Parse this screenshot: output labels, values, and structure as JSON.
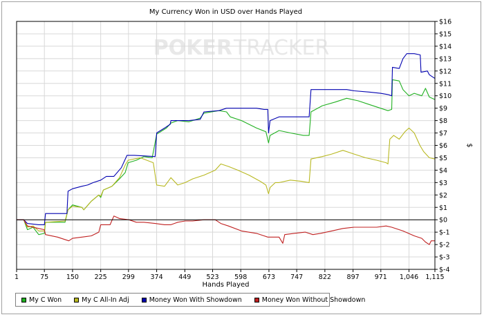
{
  "watermark": {
    "poker": "POKER",
    "tracker": "TRACKER"
  },
  "chart_data": {
    "type": "line",
    "title": "My Currency Won in USD over Hands Played",
    "xlabel": "Hands Played",
    "ylabel": "$",
    "xlim": [
      1,
      1115
    ],
    "ylim": [
      -4,
      16
    ],
    "x_ticks": [
      "1",
      "75",
      "150",
      "225",
      "299",
      "374",
      "449",
      "523",
      "598",
      "673",
      "747",
      "822",
      "897",
      "971",
      "1,046",
      "1,115"
    ],
    "y_ticks": [
      "$16",
      "$15",
      "$14",
      "$13",
      "$12",
      "$11",
      "$10",
      "$9",
      "$8",
      "$7",
      "$6",
      "$5",
      "$4",
      "$3",
      "$2",
      "$1",
      "$0",
      "$-1",
      "$-2",
      "$-3",
      "$-4"
    ],
    "grid": true,
    "legend_position": "bottom-left",
    "series": [
      {
        "name": "My C Won",
        "color": "#20b020",
        "points": [
          [
            1,
            0
          ],
          [
            20,
            0
          ],
          [
            30,
            -0.8
          ],
          [
            45,
            -0.6
          ],
          [
            60,
            -1.2
          ],
          [
            75,
            -1.1
          ],
          [
            78,
            -0.2
          ],
          [
            130,
            -0.2
          ],
          [
            138,
            0.8
          ],
          [
            150,
            1.2
          ],
          [
            175,
            1.0
          ],
          [
            180,
            0.8
          ],
          [
            200,
            1.5
          ],
          [
            220,
            2.0
          ],
          [
            225,
            1.8
          ],
          [
            232,
            2.4
          ],
          [
            255,
            2.7
          ],
          [
            275,
            3.3
          ],
          [
            290,
            3.8
          ],
          [
            298,
            4.6
          ],
          [
            320,
            4.8
          ],
          [
            340,
            5.1
          ],
          [
            362,
            5.0
          ],
          [
            374,
            6.9
          ],
          [
            400,
            7.4
          ],
          [
            412,
            7.8
          ],
          [
            430,
            8.0
          ],
          [
            460,
            7.9
          ],
          [
            490,
            8.2
          ],
          [
            500,
            8.6
          ],
          [
            540,
            8.8
          ],
          [
            560,
            8.7
          ],
          [
            570,
            8.3
          ],
          [
            600,
            8.0
          ],
          [
            640,
            7.4
          ],
          [
            665,
            7.1
          ],
          [
            672,
            6.2
          ],
          [
            676,
            6.8
          ],
          [
            700,
            7.2
          ],
          [
            730,
            7.0
          ],
          [
            765,
            6.8
          ],
          [
            780,
            6.8
          ],
          [
            785,
            8.7
          ],
          [
            815,
            9.2
          ],
          [
            850,
            9.5
          ],
          [
            880,
            9.8
          ],
          [
            910,
            9.6
          ],
          [
            940,
            9.3
          ],
          [
            970,
            9.0
          ],
          [
            990,
            8.8
          ],
          [
            1000,
            8.9
          ],
          [
            1002,
            11.3
          ],
          [
            1020,
            11.2
          ],
          [
            1030,
            10.5
          ],
          [
            1046,
            10.0
          ],
          [
            1060,
            10.2
          ],
          [
            1080,
            10.0
          ],
          [
            1090,
            10.6
          ],
          [
            1100,
            9.9
          ],
          [
            1115,
            9.7
          ]
        ]
      },
      {
        "name": "My C All-In Adj",
        "color": "#b8b820",
        "points": [
          [
            1,
            0
          ],
          [
            20,
            0
          ],
          [
            30,
            -0.6
          ],
          [
            45,
            -0.5
          ],
          [
            60,
            -0.9
          ],
          [
            75,
            -0.9
          ],
          [
            78,
            -0.2
          ],
          [
            130,
            -0.1
          ],
          [
            138,
            0.8
          ],
          [
            150,
            1.1
          ],
          [
            175,
            1.0
          ],
          [
            180,
            0.8
          ],
          [
            200,
            1.5
          ],
          [
            220,
            2.0
          ],
          [
            225,
            1.9
          ],
          [
            232,
            2.4
          ],
          [
            255,
            2.7
          ],
          [
            275,
            3.4
          ],
          [
            290,
            4.4
          ],
          [
            298,
            4.8
          ],
          [
            330,
            5.0
          ],
          [
            365,
            4.6
          ],
          [
            374,
            2.8
          ],
          [
            395,
            2.7
          ],
          [
            412,
            3.4
          ],
          [
            430,
            2.8
          ],
          [
            450,
            3.0
          ],
          [
            470,
            3.3
          ],
          [
            500,
            3.6
          ],
          [
            530,
            4.0
          ],
          [
            545,
            4.5
          ],
          [
            565,
            4.3
          ],
          [
            590,
            4.0
          ],
          [
            620,
            3.6
          ],
          [
            650,
            3.1
          ],
          [
            665,
            2.8
          ],
          [
            672,
            2.1
          ],
          [
            676,
            2.6
          ],
          [
            690,
            3.0
          ],
          [
            700,
            3.0
          ],
          [
            730,
            3.2
          ],
          [
            760,
            3.1
          ],
          [
            780,
            3.0
          ],
          [
            785,
            4.9
          ],
          [
            815,
            5.1
          ],
          [
            840,
            5.3
          ],
          [
            870,
            5.6
          ],
          [
            900,
            5.3
          ],
          [
            930,
            5.0
          ],
          [
            960,
            4.8
          ],
          [
            985,
            4.6
          ],
          [
            990,
            4.5
          ],
          [
            995,
            6.5
          ],
          [
            1005,
            6.8
          ],
          [
            1020,
            6.5
          ],
          [
            1035,
            7.1
          ],
          [
            1046,
            7.4
          ],
          [
            1060,
            7.0
          ],
          [
            1075,
            6.0
          ],
          [
            1085,
            5.5
          ],
          [
            1100,
            5.0
          ],
          [
            1115,
            4.9
          ]
        ]
      },
      {
        "name": "Money Won With Showdown",
        "color": "#0000b0",
        "points": [
          [
            1,
            0
          ],
          [
            20,
            0
          ],
          [
            30,
            -0.3
          ],
          [
            60,
            -0.4
          ],
          [
            75,
            -0.4
          ],
          [
            78,
            0.5
          ],
          [
            135,
            0.5
          ],
          [
            138,
            2.3
          ],
          [
            150,
            2.5
          ],
          [
            175,
            2.7
          ],
          [
            190,
            2.8
          ],
          [
            205,
            3.0
          ],
          [
            225,
            3.2
          ],
          [
            240,
            3.5
          ],
          [
            260,
            3.5
          ],
          [
            280,
            4.2
          ],
          [
            295,
            5.2
          ],
          [
            315,
            5.2
          ],
          [
            370,
            5.1
          ],
          [
            374,
            7.0
          ],
          [
            395,
            7.4
          ],
          [
            410,
            7.7
          ],
          [
            412,
            8.0
          ],
          [
            460,
            8.0
          ],
          [
            490,
            8.1
          ],
          [
            500,
            8.7
          ],
          [
            540,
            8.8
          ],
          [
            560,
            9.0
          ],
          [
            600,
            9.0
          ],
          [
            640,
            9.0
          ],
          [
            660,
            8.9
          ],
          [
            670,
            8.9
          ],
          [
            672,
            7.0
          ],
          [
            676,
            8.0
          ],
          [
            700,
            8.3
          ],
          [
            730,
            8.3
          ],
          [
            765,
            8.3
          ],
          [
            780,
            8.3
          ],
          [
            785,
            10.5
          ],
          [
            850,
            10.5
          ],
          [
            880,
            10.5
          ],
          [
            900,
            10.4
          ],
          [
            940,
            10.3
          ],
          [
            970,
            10.2
          ],
          [
            990,
            10.1
          ],
          [
            1000,
            10.0
          ],
          [
            1002,
            12.3
          ],
          [
            1020,
            12.2
          ],
          [
            1030,
            13.0
          ],
          [
            1040,
            13.4
          ],
          [
            1060,
            13.4
          ],
          [
            1076,
            13.3
          ],
          [
            1078,
            11.9
          ],
          [
            1095,
            12.0
          ],
          [
            1100,
            11.7
          ],
          [
            1110,
            11.5
          ],
          [
            1115,
            11.4
          ]
        ]
      },
      {
        "name": "Money Won Without Showdown",
        "color": "#c02020",
        "points": [
          [
            1,
            0
          ],
          [
            20,
            0
          ],
          [
            30,
            -0.5
          ],
          [
            60,
            -0.7
          ],
          [
            75,
            -0.8
          ],
          [
            78,
            -1.2
          ],
          [
            110,
            -1.4
          ],
          [
            140,
            -1.7
          ],
          [
            150,
            -1.5
          ],
          [
            175,
            -1.4
          ],
          [
            200,
            -1.3
          ],
          [
            220,
            -1.0
          ],
          [
            225,
            -0.4
          ],
          [
            250,
            -0.4
          ],
          [
            260,
            0.3
          ],
          [
            275,
            0.1
          ],
          [
            300,
            0.0
          ],
          [
            320,
            -0.2
          ],
          [
            340,
            -0.2
          ],
          [
            370,
            -0.3
          ],
          [
            395,
            -0.4
          ],
          [
            412,
            -0.4
          ],
          [
            430,
            -0.2
          ],
          [
            450,
            -0.1
          ],
          [
            470,
            -0.1
          ],
          [
            500,
            0.0
          ],
          [
            530,
            0.0
          ],
          [
            545,
            -0.3
          ],
          [
            565,
            -0.5
          ],
          [
            600,
            -0.9
          ],
          [
            640,
            -1.1
          ],
          [
            670,
            -1.4
          ],
          [
            700,
            -1.4
          ],
          [
            710,
            -1.9
          ],
          [
            715,
            -1.2
          ],
          [
            740,
            -1.1
          ],
          [
            770,
            -1.0
          ],
          [
            790,
            -1.2
          ],
          [
            810,
            -1.1
          ],
          [
            840,
            -0.9
          ],
          [
            870,
            -0.7
          ],
          [
            900,
            -0.6
          ],
          [
            930,
            -0.6
          ],
          [
            960,
            -0.6
          ],
          [
            985,
            -0.5
          ],
          [
            1000,
            -0.6
          ],
          [
            1030,
            -0.9
          ],
          [
            1060,
            -1.3
          ],
          [
            1080,
            -1.5
          ],
          [
            1090,
            -1.8
          ],
          [
            1100,
            -2.0
          ],
          [
            1105,
            -1.7
          ],
          [
            1115,
            -1.7
          ]
        ]
      }
    ]
  }
}
